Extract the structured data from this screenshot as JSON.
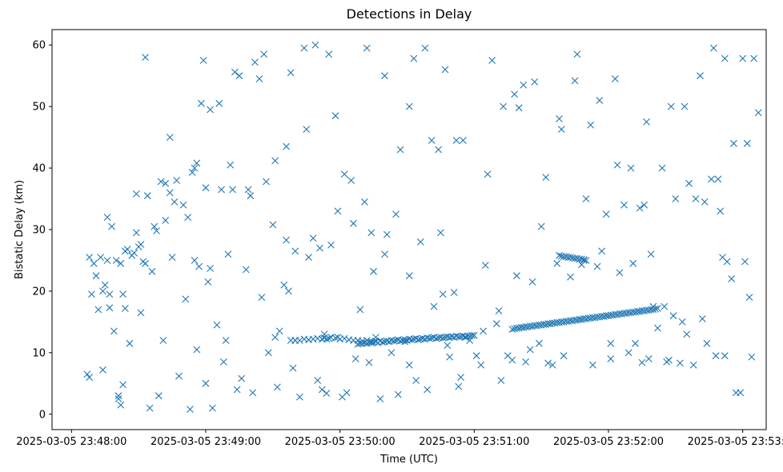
{
  "chart_data": {
    "type": "scatter",
    "title": "Detections in Delay",
    "xlabel": "Time (UTC)",
    "ylabel": "Bistatic Delay (km)",
    "marker": "x",
    "color": "#1f77b4",
    "grid": false,
    "x_unit": "seconds after 2025-03-05 23:48:00",
    "xlim": [
      -8.7,
      310.5
    ],
    "ylim": [
      -2.5,
      62.5
    ],
    "x_ticks": [
      {
        "value": 0,
        "label": "2025-03-05 23:48:00"
      },
      {
        "value": 60,
        "label": "2025-03-05 23:49:00"
      },
      {
        "value": 120,
        "label": "2025-03-05 23:50:00"
      },
      {
        "value": 180,
        "label": "2025-03-05 23:51:00"
      },
      {
        "value": 240,
        "label": "2025-03-05 23:52:00"
      },
      {
        "value": 300,
        "label": "2025-03-05 23:53:00"
      }
    ],
    "y_ticks": [
      {
        "value": 0,
        "label": "0"
      },
      {
        "value": 10,
        "label": "10"
      },
      {
        "value": 20,
        "label": "20"
      },
      {
        "value": 30,
        "label": "30"
      },
      {
        "value": 40,
        "label": "40"
      },
      {
        "value": 50,
        "label": "50"
      },
      {
        "value": 60,
        "label": "60"
      }
    ],
    "series": [
      {
        "x": [
          7,
          8,
          13,
          14,
          16,
          21,
          22,
          25,
          29,
          31,
          33,
          44,
          55,
          59,
          71,
          79,
          84,
          98,
          104,
          115,
          132,
          140,
          158,
          164,
          175,
          188,
          193,
          200,
          202,
          218,
          226,
          232,
          244,
          250,
          259,
          268,
          274,
          281,
          287,
          292,
          296,
          302,
          305,
          8,
          10,
          12,
          15,
          17,
          20,
          24,
          30,
          33,
          37,
          42,
          46,
          50,
          55,
          58,
          62,
          67,
          70,
          80,
          86,
          90,
          96,
          100,
          108,
          113,
          116,
          125,
          131,
          141,
          147,
          153,
          161,
          167,
          172,
          186,
          198,
          207,
          212,
          225,
          230,
          236,
          243,
          251,
          257,
          264,
          270,
          276,
          283,
          289,
          293,
          300,
          307,
          9,
          11,
          14,
          18,
          23,
          26,
          32,
          40,
          44,
          51,
          57,
          61,
          69,
          74,
          81,
          88,
          93,
          95,
          100,
          112,
          119,
          123,
          129,
          136,
          143,
          149,
          156,
          168,
          173,
          181,
          183,
          195,
          205,
          213,
          220,
          235,
          241,
          252,
          258,
          265,
          272,
          278,
          284,
          292,
          299,
          301,
          304,
          16,
          24,
          28,
          31,
          36,
          38,
          42,
          47,
          54,
          56,
          60,
          66,
          73,
          75,
          82,
          87,
          91,
          96,
          105,
          109,
          118,
          122,
          134,
          145,
          151,
          165,
          171,
          178,
          190,
          197,
          210,
          219,
          228,
          239,
          247,
          254,
          260,
          266,
          279,
          286,
          290,
          295,
          17,
          19,
          21,
          23,
          29,
          35,
          39,
          48,
          53,
          60,
          63,
          65,
          76,
          92,
          99,
          102,
          110,
          114,
          121,
          127,
          133,
          138,
          146,
          151,
          154,
          159,
          166,
          169,
          176,
          184,
          192,
          203,
          209,
          215,
          233,
          241,
          249,
          255,
          262,
          267,
          273,
          288,
          297,
          22,
          27,
          34,
          41,
          45,
          52,
          56,
          62,
          68,
          72,
          78,
          85,
          91,
          97,
          106,
          111,
          119,
          126,
          135,
          140,
          151,
          162,
          174,
          185,
          191,
          199,
          206,
          217,
          223,
          229,
          237,
          245,
          256,
          269,
          275,
          282,
          291,
          303
        ],
        "y": [
          6.5,
          6.0,
          25.5,
          7.2,
          32.0,
          3.0,
          1.5,
          26.8,
          35.8,
          27.6,
          58.0,
          45.0,
          40.0,
          57.5,
          40.5,
          36.5,
          54.5,
          55.5,
          59.5,
          58.5,
          59.5,
          55.0,
          59.5,
          43.0,
          44.5,
          57.5,
          50.0,
          49.8,
          53.5,
          48.0,
          58.5,
          47.0,
          40.5,
          40.0,
          26.0,
          50.0,
          50.0,
          55.0,
          59.5,
          57.8,
          44.0,
          44.0,
          57.8,
          25.5,
          24.5,
          17.0,
          21.0,
          19.5,
          25.0,
          17.2,
          27.2,
          24.5,
          30.5,
          31.5,
          34.5,
          34.0,
          25.0,
          50.5,
          49.5,
          36.5,
          26.0,
          35.5,
          58.5,
          30.8,
          28.3,
          26.5,
          28.6,
          13.0,
          27.5,
          38.0,
          34.5,
          29.2,
          43.0,
          57.8,
          44.5,
          56.0,
          44.5,
          39.0,
          52.0,
          54.0,
          38.5,
          54.2,
          35.0,
          51.0,
          54.5,
          24.5,
          47.5,
          40.0,
          35.0,
          37.5,
          34.5,
          38.2,
          24.8,
          57.8,
          49.0,
          19.5,
          22.5,
          20.0,
          30.5,
          19.5,
          11.5,
          24.8,
          37.8,
          36.0,
          18.7,
          24.0,
          21.5,
          12.0,
          4.0,
          3.5,
          10.0,
          13.5,
          21.0,
          12.0,
          4.0,
          12.5,
          3.5,
          17.0,
          12.5,
          10.0,
          11.8,
          28.0,
          11.2,
          4.5,
          9.5,
          8.0,
          9.5,
          10.5,
          8.3,
          9.5,
          24.0,
          9.0,
          11.5,
          9.0,
          17.5,
          8.3,
          8.0,
          11.5,
          9.5,
          3.5,
          24.8,
          9.3,
          25.0,
          26.5,
          26.2,
          16.5,
          23.2,
          29.8,
          37.5,
          38.0,
          39.3,
          40.8,
          36.8,
          50.5,
          55.6,
          55.0,
          57.2,
          37.8,
          41.2,
          43.5,
          46.3,
          60.0,
          48.5,
          39.0,
          29.5,
          32.5,
          50.0,
          29.5,
          19.8,
          12.0,
          14.7,
          8.8,
          30.5,
          46.3,
          24.3,
          32.5,
          34.0,
          33.5,
          17.5,
          8.5,
          35.0,
          38.2,
          33.0,
          22.0,
          17.3,
          13.5,
          2.5,
          4.8,
          29.5,
          1.0,
          3.0,
          6.2,
          0.8,
          5.0,
          1.0,
          14.5,
          5.8,
          4.4,
          7.5,
          2.8,
          5.5,
          3.4,
          2.8,
          9.0,
          8.4,
          2.5,
          3.2,
          8.0,
          5.5,
          4.0,
          19.5,
          9.3,
          12.5,
          13.5,
          5.5,
          8.5,
          11.5,
          8.0,
          8.0,
          11.5,
          10.0,
          8.4,
          14.0,
          8.8,
          15.0,
          9.5,
          3.5,
          24.5,
          25.8,
          35.5,
          12.0,
          25.5,
          32.0,
          10.5,
          23.7,
          8.5,
          36.5,
          23.5,
          19.0,
          12.5,
          20.0,
          25.5,
          27.0,
          33.0,
          31.0,
          23.2,
          26.0,
          22.5,
          17.5,
          6.0,
          24.2,
          16.8,
          22.5,
          21.5,
          24.5,
          22.3,
          25.0,
          26.5,
          23.0,
          34.0,
          16.0,
          13.0,
          15.5,
          25.5,
          19.0
        ]
      },
      {
        "x": [
          128,
          129,
          130,
          131,
          132,
          133,
          134,
          135,
          136,
          137,
          138,
          139,
          140,
          141,
          142,
          143,
          144,
          145,
          146,
          147,
          148,
          149,
          150,
          151,
          152,
          153,
          154,
          155,
          156,
          157,
          158,
          159,
          160,
          161,
          162,
          163,
          164,
          165,
          166,
          167,
          168,
          169,
          170,
          171,
          172,
          173,
          174,
          175,
          176,
          177,
          178,
          179,
          180
        ],
        "y": [
          11.4,
          11.5,
          11.5,
          11.6,
          11.5,
          11.7,
          11.6,
          11.7,
          11.8,
          11.6,
          11.9,
          11.7,
          11.8,
          11.9,
          11.8,
          12.0,
          11.9,
          12.0,
          12.1,
          11.9,
          12.0,
          12.1,
          12.0,
          12.2,
          12.1,
          12.2,
          12.3,
          12.1,
          12.2,
          12.3,
          12.2,
          12.4,
          12.3,
          12.4,
          12.5,
          12.3,
          12.4,
          12.5,
          12.4,
          12.5,
          12.6,
          12.5,
          12.6,
          12.5,
          12.7,
          12.6,
          12.6,
          12.7,
          12.6,
          12.7,
          12.7,
          12.8,
          12.8
        ]
      },
      {
        "x": [
          197,
          198,
          199,
          200,
          201,
          202,
          203,
          204,
          205,
          206,
          207,
          208,
          209,
          210,
          211,
          212,
          213,
          214,
          215,
          216,
          217,
          218,
          219,
          220,
          221,
          222,
          223,
          224,
          225,
          226,
          227,
          228,
          229,
          230,
          231,
          232,
          233,
          234,
          235,
          236,
          237,
          238,
          239,
          240,
          241,
          242,
          243,
          244,
          245,
          246,
          247,
          248,
          249,
          250,
          251,
          252,
          253,
          254,
          255,
          256,
          257,
          258,
          259,
          260,
          261,
          262
        ],
        "y": [
          13.8,
          13.9,
          14.0,
          14.0,
          14.1,
          14.1,
          14.2,
          14.2,
          14.3,
          14.3,
          14.4,
          14.4,
          14.5,
          14.5,
          14.6,
          14.6,
          14.7,
          14.7,
          14.8,
          14.8,
          14.9,
          14.9,
          15.0,
          15.0,
          15.1,
          15.1,
          15.2,
          15.2,
          15.3,
          15.3,
          15.4,
          15.4,
          15.5,
          15.5,
          15.6,
          15.6,
          15.7,
          15.7,
          15.8,
          15.8,
          15.9,
          15.9,
          16.0,
          16.0,
          16.1,
          16.1,
          16.2,
          16.2,
          16.3,
          16.3,
          16.4,
          16.4,
          16.5,
          16.5,
          16.6,
          16.6,
          16.7,
          16.7,
          16.8,
          16.8,
          16.9,
          16.9,
          17.0,
          17.0,
          17.1,
          17.2
        ]
      },
      {
        "x": [
          98,
          100,
          102,
          104,
          106,
          108,
          110,
          112,
          113,
          114,
          115,
          116,
          118,
          120,
          122,
          124,
          126,
          128,
          130,
          132,
          134,
          136
        ],
        "y": [
          12.0,
          12.0,
          12.0,
          12.2,
          12.1,
          12.2,
          12.3,
          12.2,
          12.4,
          12.2,
          12.3,
          12.5,
          12.4,
          12.2,
          12.3,
          12.1,
          12.0,
          12.0,
          11.9,
          12.0,
          11.8,
          11.9
        ]
      },
      {
        "x": [
          218,
          219,
          220,
          221,
          222,
          223,
          224,
          225,
          226,
          227,
          228,
          229,
          230
        ],
        "y": [
          25.8,
          25.7,
          25.6,
          25.6,
          25.5,
          25.5,
          25.4,
          25.3,
          25.3,
          25.2,
          25.2,
          25.1,
          25.0
        ]
      }
    ]
  }
}
